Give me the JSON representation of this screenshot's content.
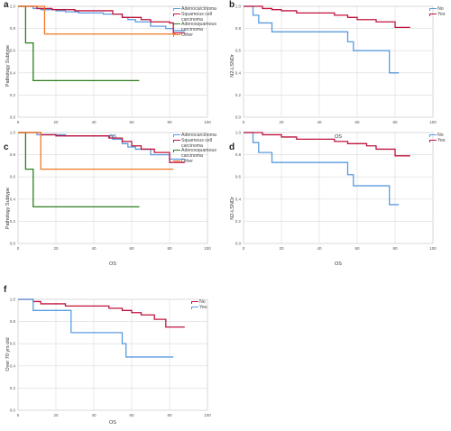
{
  "colors": {
    "blue": "#5b9be0",
    "red": "#c0143c",
    "green": "#2e7d1e",
    "orange": "#f07820",
    "grid": "#d9d9d9"
  },
  "chart_data": [
    {
      "panel": "a",
      "type": "line",
      "xlabel": "OS",
      "ylabel": "Pathology Subtype",
      "xlim": [
        0,
        100
      ],
      "ylim": [
        0,
        1
      ],
      "xticks": [
        "0",
        "20",
        "40",
        "60",
        "80",
        "100"
      ],
      "yticks": [
        "0.0",
        "0.2",
        "0.4",
        "0.6",
        "0.8",
        "1.0"
      ],
      "grid": true,
      "legend": "right",
      "series": [
        {
          "name": "Adenocarcinoma",
          "color": "blue",
          "x": [
            0,
            8,
            12,
            20,
            25,
            32,
            45,
            55,
            58,
            62,
            70,
            78,
            82,
            88
          ],
          "y": [
            1.0,
            0.98,
            0.97,
            0.96,
            0.95,
            0.94,
            0.93,
            0.9,
            0.88,
            0.86,
            0.82,
            0.8,
            0.78,
            0.78
          ]
        },
        {
          "name": "Squamous cell carcinoma",
          "color": "red",
          "x": [
            0,
            10,
            18,
            30,
            50,
            55,
            65,
            70,
            80,
            82,
            88
          ],
          "y": [
            1.0,
            0.98,
            0.97,
            0.96,
            0.93,
            0.9,
            0.88,
            0.86,
            0.85,
            0.76,
            0.76
          ]
        },
        {
          "name": "Adenosquamous carcinoma",
          "color": "green",
          "x": [
            0,
            4,
            8,
            64
          ],
          "y": [
            1.0,
            0.67,
            0.33,
            0.33
          ]
        },
        {
          "name": "Other",
          "color": "orange",
          "x": [
            0,
            14,
            83
          ],
          "y": [
            1.0,
            0.75,
            0.75
          ]
        }
      ]
    },
    {
      "panel": "b",
      "type": "line",
      "xlabel": "OS",
      "ylabel": "N2-LSNDr",
      "xlim": [
        0,
        100
      ],
      "ylim": [
        0,
        1
      ],
      "xticks": [
        "0",
        "20",
        "40",
        "60",
        "80",
        "100"
      ],
      "yticks": [
        "0.0",
        "0.2",
        "0.4",
        "0.6",
        "0.8",
        "1.0"
      ],
      "grid": true,
      "legend": "top-right",
      "series": [
        {
          "name": "No",
          "color": "blue",
          "x": [
            0,
            5,
            8,
            15,
            55,
            58,
            77,
            82
          ],
          "y": [
            1.0,
            0.92,
            0.85,
            0.77,
            0.68,
            0.6,
            0.4,
            0.4
          ]
        },
        {
          "name": "Yes",
          "color": "red",
          "x": [
            0,
            10,
            15,
            20,
            28,
            48,
            55,
            60,
            70,
            80,
            88
          ],
          "y": [
            1.0,
            0.98,
            0.97,
            0.96,
            0.94,
            0.92,
            0.9,
            0.88,
            0.86,
            0.81,
            0.81
          ]
        }
      ]
    },
    {
      "panel": "c",
      "type": "line",
      "xlabel": "OS",
      "ylabel": "Pathology Subtype",
      "xlim": [
        0,
        100
      ],
      "ylim": [
        0,
        1
      ],
      "xticks": [
        "0",
        "20",
        "40",
        "60",
        "80",
        "100"
      ],
      "yticks": [
        "0.0",
        "0.2",
        "0.4",
        "0.6",
        "0.8",
        "1.0"
      ],
      "grid": true,
      "legend": "right",
      "series": [
        {
          "name": "Adenocarcinoma",
          "color": "blue",
          "x": [
            0,
            10,
            25,
            50,
            55,
            58,
            62,
            70,
            80,
            88
          ],
          "y": [
            1.0,
            0.98,
            0.97,
            0.94,
            0.9,
            0.87,
            0.85,
            0.8,
            0.76,
            0.76
          ]
        },
        {
          "name": "Squamous cell carcinoma",
          "color": "red",
          "x": [
            0,
            12,
            20,
            48,
            55,
            60,
            65,
            72,
            80,
            88
          ],
          "y": [
            1.0,
            0.98,
            0.97,
            0.95,
            0.92,
            0.88,
            0.85,
            0.82,
            0.73,
            0.73
          ]
        },
        {
          "name": "Adenosquamous carcinoma",
          "color": "green",
          "x": [
            0,
            4,
            8,
            64
          ],
          "y": [
            1.0,
            0.67,
            0.33,
            0.33
          ]
        },
        {
          "name": "Other",
          "color": "orange",
          "x": [
            0,
            12,
            82
          ],
          "y": [
            1.0,
            0.67,
            0.67
          ]
        }
      ]
    },
    {
      "panel": "d",
      "type": "line",
      "xlabel": "OS",
      "ylabel": "N2-LSNDr",
      "xlim": [
        0,
        100
      ],
      "ylim": [
        0,
        1
      ],
      "xticks": [
        "0",
        "20",
        "40",
        "60",
        "80",
        "100"
      ],
      "yticks": [
        "0.0",
        "0.2",
        "0.4",
        "0.6",
        "0.8",
        "1.0"
      ],
      "grid": true,
      "legend": "top-right",
      "series": [
        {
          "name": "No",
          "color": "blue",
          "x": [
            0,
            5,
            8,
            15,
            55,
            58,
            77,
            82
          ],
          "y": [
            1.0,
            0.91,
            0.82,
            0.73,
            0.62,
            0.52,
            0.35,
            0.35
          ]
        },
        {
          "name": "Yes",
          "color": "red",
          "x": [
            0,
            10,
            20,
            28,
            48,
            55,
            65,
            70,
            80,
            88
          ],
          "y": [
            1.0,
            0.98,
            0.96,
            0.94,
            0.92,
            0.9,
            0.88,
            0.85,
            0.79,
            0.79
          ]
        }
      ]
    },
    {
      "panel": "f",
      "type": "line",
      "xlabel": "OS",
      "ylabel": "Over 70 yrs old",
      "xlim": [
        0,
        100
      ],
      "ylim": [
        0,
        1
      ],
      "xticks": [
        "0",
        "20",
        "40",
        "60",
        "80",
        "100"
      ],
      "yticks": [
        "0.0",
        "0.2",
        "0.4",
        "0.6",
        "0.8",
        "1.0"
      ],
      "grid": true,
      "legend": "top-right",
      "series": [
        {
          "name": "No",
          "color": "red",
          "x": [
            0,
            8,
            12,
            25,
            48,
            55,
            60,
            65,
            72,
            78,
            88
          ],
          "y": [
            1.0,
            0.98,
            0.96,
            0.94,
            0.92,
            0.9,
            0.88,
            0.86,
            0.82,
            0.75,
            0.75
          ]
        },
        {
          "name": "Yes",
          "color": "blue",
          "x": [
            0,
            8,
            28,
            55,
            57,
            82
          ],
          "y": [
            1.0,
            0.9,
            0.7,
            0.6,
            0.48,
            0.48
          ]
        }
      ]
    }
  ]
}
